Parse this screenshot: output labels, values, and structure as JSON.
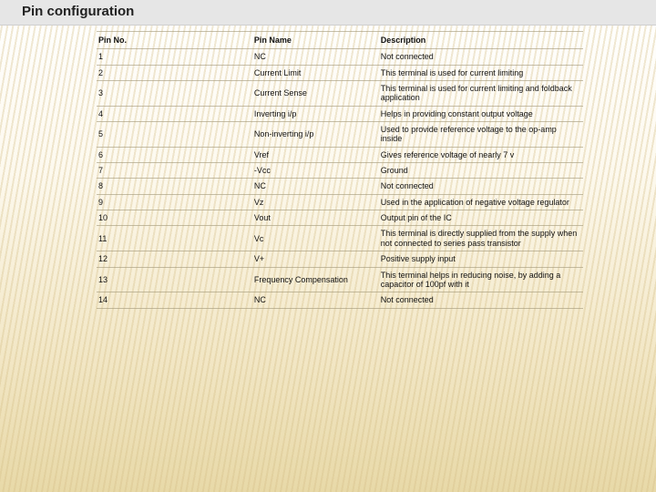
{
  "title": "Pin configuration",
  "table": {
    "columns": [
      "Pin No.",
      "Pin Name",
      "Description"
    ],
    "rows": [
      [
        "1",
        "NC",
        "Not connected"
      ],
      [
        "2",
        "Current Limit",
        "This terminal is used for current limiting"
      ],
      [
        "3",
        "Current Sense",
        "This terminal is used for current limiting and foldback application"
      ],
      [
        "4",
        "Inverting i/p",
        "Helps in providing constant output voltage"
      ],
      [
        "5",
        "Non-inverting i/p",
        "Used to provide reference voltage to the op-amp inside"
      ],
      [
        "6",
        "Vref",
        "Gives reference voltage of nearly 7 v"
      ],
      [
        "7",
        "-Vcc",
        "Ground"
      ],
      [
        "8",
        "NC",
        "Not connected"
      ],
      [
        "9",
        "Vz",
        "Used in the application of negative voltage regulator"
      ],
      [
        "10",
        "Vout",
        "Output pin of the IC"
      ],
      [
        "11",
        "Vc",
        "This terminal is directly supplied from the supply when not connected to series pass transistor"
      ],
      [
        "12",
        "V+",
        "Positive supply input"
      ],
      [
        "13",
        "Frequency Compensation",
        "This terminal helps in reducing noise, by adding a capacitor of 100pf with it"
      ],
      [
        "14",
        "NC",
        "Not connected"
      ]
    ]
  },
  "style": {
    "title_bg": "#e6e6e6",
    "title_color": "#222222",
    "title_fontsize": 15,
    "body_font": "Arial",
    "cell_fontsize": 9,
    "border_color": "rgba(160,150,120,0.6)",
    "bg_gradient_top": "#ffffff",
    "bg_gradient_bottom": "#e8d9a8",
    "hatch_color": "rgba(212,190,135,0.35)"
  }
}
